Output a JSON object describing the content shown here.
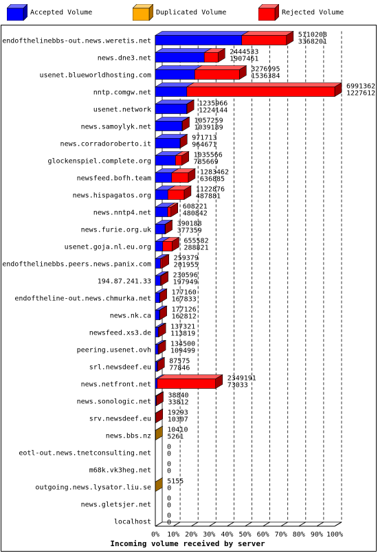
{
  "legend": {
    "items": [
      {
        "label": "Accepted Volume",
        "color": "#0000ff"
      },
      {
        "label": "Duplicated Volume",
        "color": "#ffaa00"
      },
      {
        "label": "Rejected Volume",
        "color": "#ff0000"
      }
    ]
  },
  "chart_data": {
    "type": "bar",
    "orientation": "horizontal",
    "stacked": true,
    "title": "",
    "xlabel": "Incoming volume received by server",
    "ylabel": "",
    "x_ticks": [
      "0%",
      "10%",
      "20%",
      "30%",
      "40%",
      "50%",
      "60%",
      "70%",
      "80%",
      "90%",
      "100%"
    ],
    "xlim": [
      0,
      6991362
    ],
    "categories": [
      "endofthelinebbs-out.news.weretis.net",
      "news.dne3.net",
      "usenet.blueworldhosting.com",
      "nntp.comgw.net",
      "usenet.network",
      "news.samoylyk.net",
      "news.corradoroberto.it",
      "glockenspiel.complete.org",
      "newsfeed.bofh.team",
      "news.hispagatos.org",
      "news.nntp4.net",
      "news.furie.org.uk",
      "usenet.goja.nl.eu.org",
      "endofthelinebbs.peers.news.panix.com",
      "194.87.241.33",
      "endoftheline-out.news.chmurka.net",
      "news.nk.ca",
      "newsfeed.xs3.de",
      "peering.usenet.ovh",
      "srl.newsdeef.eu",
      "news.netfront.net",
      "news.sonologic.net",
      "srv.newsdeef.eu",
      "news.bbs.nz",
      "eotl-out.news.tnetconsulting.net",
      "m68k.vk3heg.net",
      "outgoing.news.lysator.liu.se",
      "news.gletsjer.net",
      "localhost"
    ],
    "total_labels": [
      "5110208",
      "2444533",
      "3276995",
      "6991362",
      "1235966",
      "1057259",
      "971713",
      "1035566",
      "1283462",
      "1122876",
      "608221",
      "390188",
      "655582",
      "259379",
      "230596",
      "177160",
      "177126",
      "137321",
      "134500",
      "87575",
      "2349191",
      "38840",
      "19293",
      "10410",
      "0",
      "0",
      "5155",
      "0",
      "0"
    ],
    "accepted_labels": [
      "3368201",
      "1907461",
      "1536384",
      "1227612",
      "1224144",
      "1039189",
      "964671",
      "785669",
      "636885",
      "487881",
      "480842",
      "377359",
      "288821",
      "201955",
      "197949",
      "167833",
      "162812",
      "113819",
      "109499",
      "77846",
      "73033",
      "33812",
      "10307",
      "5261",
      "0",
      "0",
      "0",
      "0",
      "0"
    ],
    "series": [
      {
        "name": "Accepted Volume",
        "color": "#0000ff",
        "values": [
          3368201,
          1907461,
          1536384,
          1227612,
          1224144,
          1039189,
          964671,
          785669,
          636885,
          487881,
          480842,
          377359,
          288821,
          201955,
          197949,
          167833,
          162812,
          113819,
          109499,
          77846,
          73033,
          33812,
          10307,
          5261,
          0,
          0,
          0,
          0,
          0
        ]
      },
      {
        "name": "Duplicated Volume",
        "color": "#ffaa00",
        "values": [
          0,
          0,
          0,
          0,
          0,
          0,
          0,
          0,
          0,
          0,
          0,
          0,
          0,
          0,
          0,
          0,
          0,
          0,
          0,
          0,
          0,
          0,
          0,
          5149,
          0,
          0,
          5155,
          0,
          0
        ]
      },
      {
        "name": "Rejected Volume",
        "color": "#ff0000",
        "values": [
          1742007,
          537072,
          1740611,
          5763750,
          11822,
          18070,
          7042,
          249897,
          646577,
          634995,
          127379,
          12829,
          366761,
          57424,
          32647,
          9327,
          14314,
          23502,
          25001,
          9729,
          2276158,
          5028,
          8986,
          0,
          0,
          0,
          0,
          0,
          0
        ]
      }
    ]
  }
}
